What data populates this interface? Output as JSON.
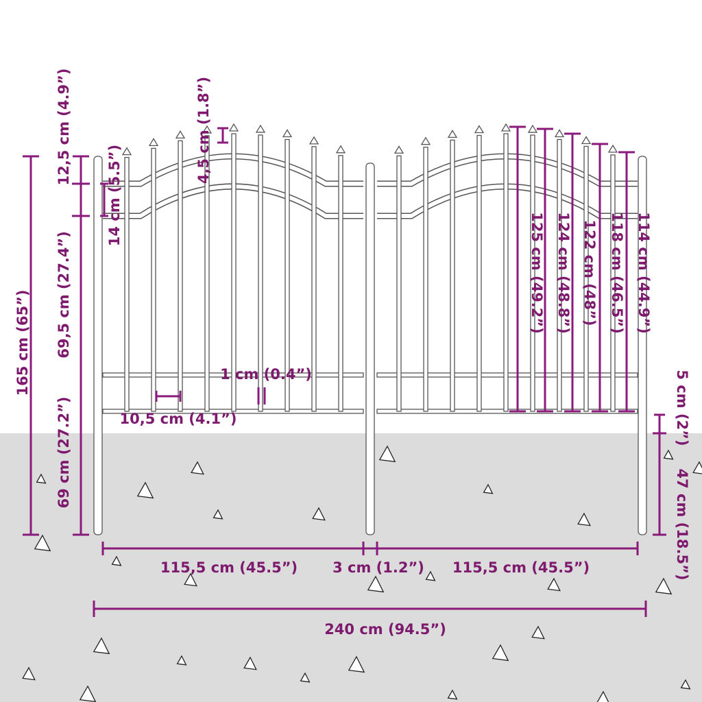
{
  "colors": {
    "dimension": "#8b1a7d",
    "label": "#7d1a6e",
    "ground": "#dcdcdc",
    "fence_outline": "#555555"
  },
  "labels": {
    "total_height": "165 cm (65”)",
    "top_section": "12,5 cm (4.9”)",
    "middle_section": "69,5 cm (27.4”)",
    "bottom_section": "69 cm (27.2”)",
    "rail_gap": "14 cm (5.5”)",
    "spike": "4,5 cm (1.8”)",
    "bar_width": "1 cm (0.4”)",
    "bar_spacing": "10,5 cm (4.1”)",
    "h125": "125 cm (49.2”)",
    "h124": "124 cm (48.8”)",
    "h122": "122 cm (48”)",
    "h118": "118 cm (46.5”)",
    "h114": "114 cm (44.9”)",
    "ground_gap": "5 cm (2”)",
    "post_depth": "47 cm (18.5”)",
    "panel_left": "115,5 cm (45.5”)",
    "post_gap": "3 cm (1.2”)",
    "panel_right": "115,5 cm (45.5”)",
    "total_width": "240 cm (94.5”)"
  }
}
